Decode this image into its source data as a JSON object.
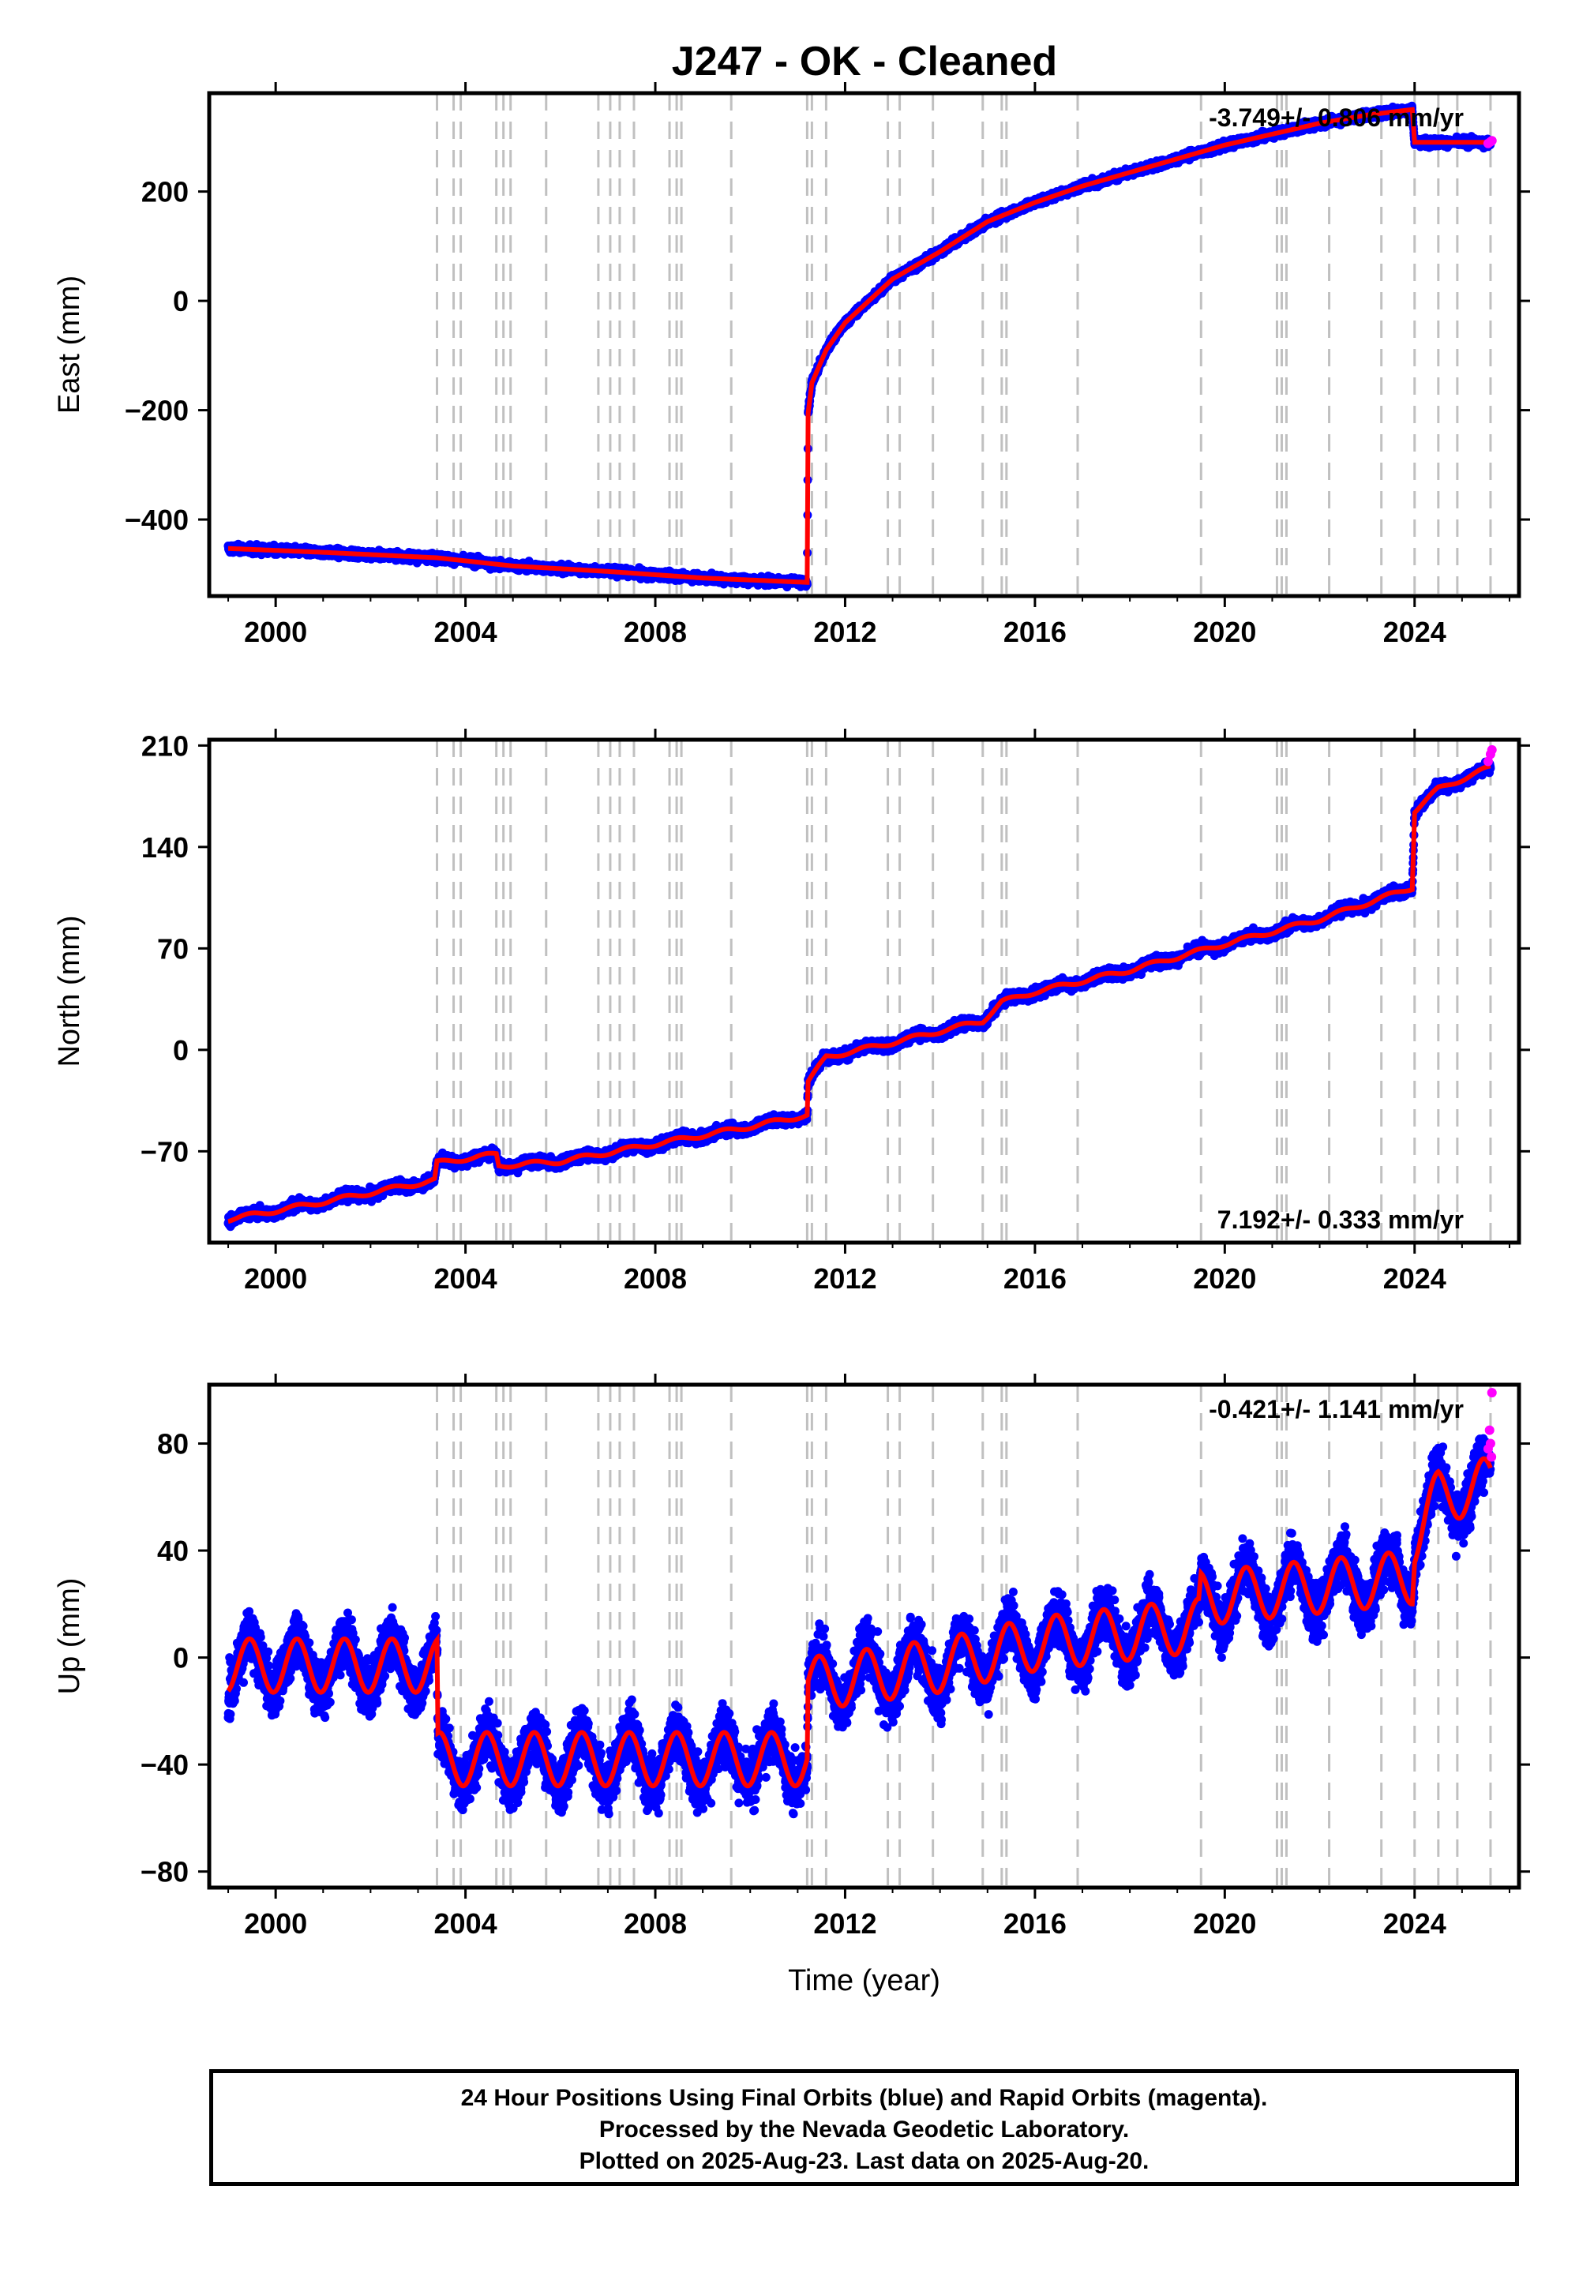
{
  "title": "J247  - OK - Cleaned",
  "colors": {
    "final_orbits": "#0000ff",
    "rapid_orbits": "#ff00ff",
    "model": "#ff0000",
    "event_lines": "#c0c0c0"
  },
  "footer": {
    "line1": "24 Hour Positions Using Final Orbits (blue) and Rapid Orbits (magenta).",
    "line2": "Processed by the Nevada Geodetic Laboratory.",
    "line3": "Plotted on 2025-Aug-23. Last data on 2025-Aug-20."
  },
  "chart_data": [
    {
      "type": "scatter",
      "ylabel": "East (mm)",
      "xlabel": "",
      "rate_label": "-3.749+/- 0.806 mm/yr",
      "rate_position": "top-right",
      "xlim": [
        1998.6,
        2026.2
      ],
      "ylim": [
        -540,
        380
      ],
      "xticks": [
        2000,
        2004,
        2008,
        2012,
        2016,
        2020,
        2024
      ],
      "xtick_labels": [
        "2000",
        "2004",
        "2008",
        "2012",
        "2016",
        "2020",
        "2024"
      ],
      "yticks": [
        -400,
        -200,
        0,
        200
      ],
      "ytick_labels": [
        "−400",
        "−200",
        "0",
        "200"
      ],
      "event_lines": [
        2003.4,
        2003.75,
        2003.9,
        2004.65,
        2004.8,
        2004.95,
        2005.7,
        2006.8,
        2007.05,
        2007.25,
        2007.55,
        2008.3,
        2008.45,
        2008.55,
        2009.6,
        2011.2,
        2011.3,
        2011.6,
        2012.9,
        2013.15,
        2013.85,
        2014.9,
        2015.3,
        2015.4,
        2016.9,
        2019.5,
        2021.1,
        2021.2,
        2021.3,
        2022.2,
        2023.3,
        2024.0,
        2024.5,
        2024.9,
        2025.6
      ],
      "model": [
        {
          "x": 1999.0,
          "y": -453
        },
        {
          "x": 2001.0,
          "y": -460
        },
        {
          "x": 2003.4,
          "y": -470
        },
        {
          "x": 2005.0,
          "y": -485
        },
        {
          "x": 2007.0,
          "y": -495
        },
        {
          "x": 2009.0,
          "y": -507
        },
        {
          "x": 2011.2,
          "y": -515
        },
        {
          "x": 2011.22,
          "y": -205
        },
        {
          "x": 2011.3,
          "y": -150
        },
        {
          "x": 2011.6,
          "y": -90
        },
        {
          "x": 2012.0,
          "y": -40
        },
        {
          "x": 2013.0,
          "y": 40
        },
        {
          "x": 2014.0,
          "y": 90
        },
        {
          "x": 2015.0,
          "y": 145
        },
        {
          "x": 2016.0,
          "y": 180
        },
        {
          "x": 2017.0,
          "y": 210
        },
        {
          "x": 2018.0,
          "y": 235
        },
        {
          "x": 2019.0,
          "y": 260
        },
        {
          "x": 2020.0,
          "y": 285
        },
        {
          "x": 2021.0,
          "y": 305
        },
        {
          "x": 2022.0,
          "y": 325
        },
        {
          "x": 2023.0,
          "y": 340
        },
        {
          "x": 2023.95,
          "y": 350
        },
        {
          "x": 2024.0,
          "y": 290
        },
        {
          "x": 2025.6,
          "y": 290
        }
      ],
      "scatter": {
        "noise": 6,
        "seasonal": 0,
        "step": 0.004
      },
      "rapid_points": [
        {
          "x": 2025.55,
          "y": 288
        },
        {
          "x": 2025.6,
          "y": 291
        },
        {
          "x": 2025.63,
          "y": 293
        }
      ]
    },
    {
      "type": "scatter",
      "ylabel": "North (mm)",
      "xlabel": "",
      "rate_label": "7.192+/- 0.333 mm/yr",
      "rate_position": "bottom-right",
      "xlim": [
        1998.6,
        2026.2
      ],
      "ylim": [
        -133,
        214
      ],
      "xticks": [
        2000,
        2004,
        2008,
        2012,
        2016,
        2020,
        2024
      ],
      "xtick_labels": [
        "2000",
        "2004",
        "2008",
        "2012",
        "2016",
        "2020",
        "2024"
      ],
      "yticks": [
        -70,
        0,
        70,
        140,
        210
      ],
      "ytick_labels": [
        "−70",
        "0",
        "70",
        "140",
        "210"
      ],
      "event_lines": [
        2003.4,
        2003.75,
        2003.9,
        2004.65,
        2004.8,
        2004.95,
        2005.7,
        2006.8,
        2007.05,
        2007.25,
        2007.55,
        2008.3,
        2008.45,
        2008.55,
        2009.6,
        2011.2,
        2011.3,
        2011.6,
        2012.9,
        2013.15,
        2013.85,
        2014.9,
        2015.3,
        2015.4,
        2016.9,
        2019.5,
        2021.1,
        2021.2,
        2021.3,
        2022.2,
        2023.3,
        2024.0,
        2024.5,
        2024.9,
        2025.6
      ],
      "model": [
        {
          "x": 1999.0,
          "y": -117
        },
        {
          "x": 2001.0,
          "y": -105
        },
        {
          "x": 2003.35,
          "y": -90
        },
        {
          "x": 2003.4,
          "y": -78
        },
        {
          "x": 2004.65,
          "y": -72
        },
        {
          "x": 2004.7,
          "y": -80
        },
        {
          "x": 2006.0,
          "y": -77
        },
        {
          "x": 2008.0,
          "y": -65
        },
        {
          "x": 2010.0,
          "y": -53
        },
        {
          "x": 2011.2,
          "y": -45
        },
        {
          "x": 2011.22,
          "y": -22
        },
        {
          "x": 2011.6,
          "y": -5
        },
        {
          "x": 2013.0,
          "y": 5
        },
        {
          "x": 2014.9,
          "y": 20
        },
        {
          "x": 2015.3,
          "y": 33
        },
        {
          "x": 2016.0,
          "y": 40
        },
        {
          "x": 2018.0,
          "y": 55
        },
        {
          "x": 2020.0,
          "y": 73
        },
        {
          "x": 2022.0,
          "y": 90
        },
        {
          "x": 2023.95,
          "y": 112
        },
        {
          "x": 2024.0,
          "y": 165
        },
        {
          "x": 2024.5,
          "y": 180
        },
        {
          "x": 2025.6,
          "y": 195
        }
      ],
      "scatter": {
        "noise": 3,
        "seasonal": 1.5,
        "step": 0.004
      },
      "rapid_points": [
        {
          "x": 2025.55,
          "y": 199
        },
        {
          "x": 2025.6,
          "y": 204
        },
        {
          "x": 2025.63,
          "y": 207
        }
      ]
    },
    {
      "type": "scatter",
      "ylabel": "Up (mm)",
      "xlabel": "Time (year)",
      "rate_label": "-0.421+/- 1.141 mm/yr",
      "rate_position": "top-right",
      "xlim": [
        1998.6,
        2026.2
      ],
      "ylim": [
        -86,
        102
      ],
      "xticks": [
        2000,
        2004,
        2008,
        2012,
        2016,
        2020,
        2024
      ],
      "xtick_labels": [
        "2000",
        "2004",
        "2008",
        "2012",
        "2016",
        "2020",
        "2024"
      ],
      "yticks": [
        -80,
        -40,
        0,
        40,
        80
      ],
      "ytick_labels": [
        "−80",
        "−40",
        "0",
        "40",
        "80"
      ],
      "event_lines": [
        2003.4,
        2003.75,
        2003.9,
        2004.65,
        2004.8,
        2004.95,
        2005.7,
        2006.8,
        2007.05,
        2007.25,
        2007.55,
        2008.3,
        2008.45,
        2008.55,
        2009.6,
        2011.2,
        2011.3,
        2011.6,
        2012.9,
        2013.15,
        2013.85,
        2014.9,
        2015.3,
        2015.4,
        2016.9,
        2019.5,
        2021.1,
        2021.2,
        2021.3,
        2022.2,
        2023.3,
        2024.0,
        2024.5,
        2024.9,
        2025.6
      ],
      "model": [
        {
          "x": 1999.0,
          "y": -3
        },
        {
          "x": 2003.4,
          "y": -3
        },
        {
          "x": 2003.42,
          "y": -38
        },
        {
          "x": 2011.2,
          "y": -38
        },
        {
          "x": 2011.22,
          "y": -10
        },
        {
          "x": 2014.0,
          "y": -3
        },
        {
          "x": 2016.0,
          "y": 5
        },
        {
          "x": 2019.45,
          "y": 12
        },
        {
          "x": 2019.5,
          "y": 22
        },
        {
          "x": 2021.1,
          "y": 25
        },
        {
          "x": 2023.95,
          "y": 30
        },
        {
          "x": 2024.0,
          "y": 45
        },
        {
          "x": 2024.5,
          "y": 60
        },
        {
          "x": 2025.6,
          "y": 65
        }
      ],
      "scatter": {
        "noise": 8,
        "seasonal": 10,
        "step": 0.003
      },
      "rapid_points": [
        {
          "x": 2025.55,
          "y": 78
        },
        {
          "x": 2025.58,
          "y": 85
        },
        {
          "x": 2025.6,
          "y": 80
        },
        {
          "x": 2025.62,
          "y": 75
        },
        {
          "x": 2025.63,
          "y": 99
        }
      ]
    }
  ]
}
